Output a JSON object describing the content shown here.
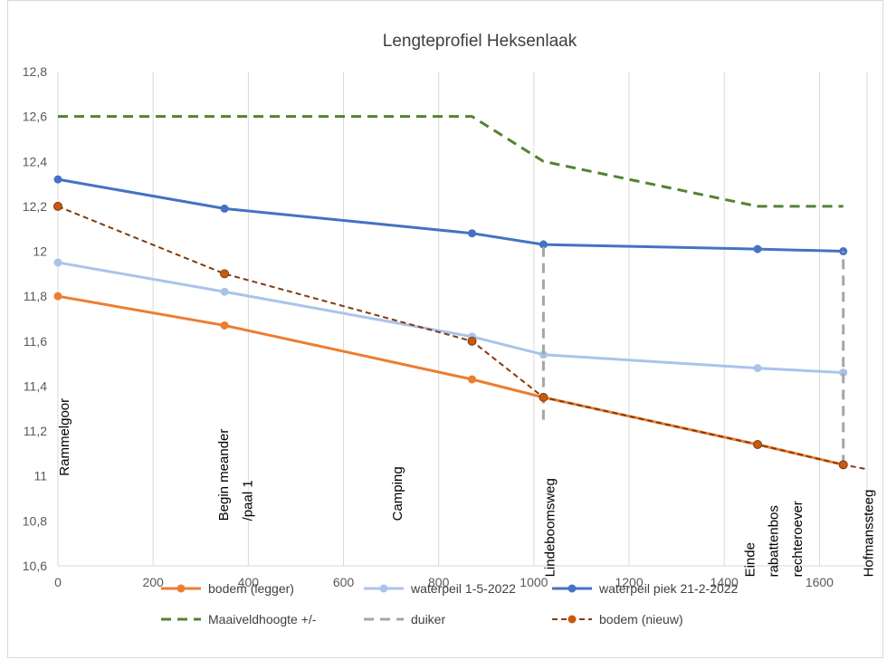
{
  "chart_data": {
    "type": "line",
    "title": "Lengteprofiel Heksenlaak",
    "xlabel": "",
    "ylabel": "",
    "xlim": [
      0,
      1650
    ],
    "ylim": [
      10.6,
      12.8
    ],
    "xticks": [
      0,
      200,
      400,
      600,
      800,
      1000,
      1200,
      1400,
      1600
    ],
    "xtick_labels": [
      "0",
      "200",
      "400",
      "600",
      "800",
      "1000",
      "1200",
      "1400",
      "1600"
    ],
    "yticks": [
      10.6,
      10.8,
      11,
      11.2,
      11.4,
      11.6,
      11.8,
      12,
      12.2,
      12.4,
      12.6,
      12.8
    ],
    "ytick_labels": [
      "10,6",
      "10,8",
      "11",
      "11,2",
      "11,4",
      "11,6",
      "11,8",
      "12",
      "12,2",
      "12,4",
      "12,6",
      "12,8"
    ],
    "grid": "vertical",
    "legend_position": "bottom",
    "series": [
      {
        "name": "bodem (legger)",
        "color": "#ED7D31",
        "style": "solid",
        "markers": true,
        "points": [
          [
            0,
            11.8
          ],
          [
            350,
            11.67
          ],
          [
            870,
            11.43
          ],
          [
            1020,
            11.35
          ],
          [
            1470,
            11.14
          ],
          [
            1650,
            11.05
          ]
        ]
      },
      {
        "name": "waterpeil 1-5-2022",
        "color": "#A9C4EB",
        "style": "solid",
        "markers": true,
        "points": [
          [
            0,
            11.95
          ],
          [
            350,
            11.82
          ],
          [
            870,
            11.62
          ],
          [
            1020,
            11.54
          ],
          [
            1470,
            11.48
          ],
          [
            1650,
            11.46
          ]
        ]
      },
      {
        "name": "waterpeil piek 21-2-2022",
        "color": "#4472C4",
        "style": "solid",
        "markers": true,
        "points": [
          [
            0,
            12.32
          ],
          [
            350,
            12.19
          ],
          [
            870,
            12.08
          ],
          [
            1020,
            12.03
          ],
          [
            1470,
            12.01
          ],
          [
            1650,
            12.0
          ]
        ]
      },
      {
        "name": "Maaiveldhoogte +/-",
        "color": "#548235",
        "style": "dashed",
        "markers": false,
        "points": [
          [
            0,
            12.6
          ],
          [
            870,
            12.6
          ],
          [
            1020,
            12.4
          ],
          [
            1470,
            12.2
          ],
          [
            1650,
            12.2
          ]
        ]
      },
      {
        "name": "duiker",
        "color": "#A6A6A6",
        "style": "dashed",
        "markers": false,
        "segments": [
          [
            [
              1020,
              11.25
            ],
            [
              1020,
              12.05
            ]
          ],
          [
            [
              1650,
              11.05
            ],
            [
              1650,
              12.0
            ]
          ]
        ]
      },
      {
        "name": "bodem (nieuw)",
        "color": "#843C0C",
        "marker_color": "#C55A11",
        "style": "dashed",
        "markers": true,
        "points": [
          [
            0,
            12.2
          ],
          [
            350,
            11.9
          ],
          [
            870,
            11.6
          ],
          [
            1020,
            11.35
          ],
          [
            1470,
            11.14
          ],
          [
            1650,
            11.05
          ],
          [
            1700,
            11.03
          ]
        ],
        "marker_points": [
          [
            0,
            12.2
          ],
          [
            350,
            11.9
          ],
          [
            870,
            11.6
          ],
          [
            1020,
            11.35
          ],
          [
            1470,
            11.14
          ],
          [
            1650,
            11.05
          ]
        ]
      }
    ],
    "annotations": [
      {
        "text": "Rammelgoor",
        "x": 0,
        "y": 11.0
      },
      {
        "text": "Begin meander",
        "x": 335,
        "y": 10.8
      },
      {
        "text": "/paal 1",
        "x": 385,
        "y": 10.8
      },
      {
        "text": "Camping",
        "x": 700,
        "y": 10.8
      },
      {
        "text": "Lindeboomsweg",
        "x": 1020,
        "y": 10.55
      },
      {
        "text": "Einde",
        "x": 1440,
        "y": 10.55
      },
      {
        "text": "rabattenbos",
        "x": 1490,
        "y": 10.55
      },
      {
        "text": "rechteroever",
        "x": 1540,
        "y": 10.55
      },
      {
        "text": "Hofmanssteeg",
        "x": 1690,
        "y": 10.55
      }
    ]
  }
}
